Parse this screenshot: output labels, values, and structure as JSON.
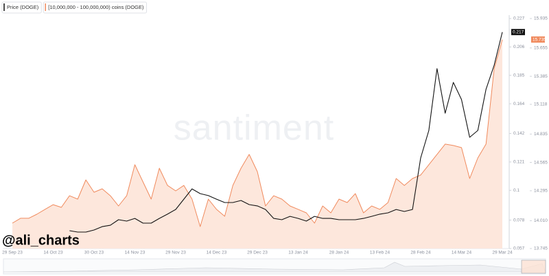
{
  "chart_data": {
    "type": "line",
    "watermark": "santiment",
    "annotation": "@ali_charts",
    "categories": [
      "29 Sep 23",
      null,
      null,
      null,
      null,
      "14 Oct 23",
      null,
      null,
      null,
      null,
      "30 Oct 23",
      null,
      null,
      null,
      null,
      "14 Nov 23",
      null,
      null,
      null,
      null,
      "29 Nov 23",
      null,
      null,
      null,
      null,
      "14 Dec 23",
      null,
      null,
      null,
      null,
      "29 Dec 23",
      null,
      null,
      null,
      null,
      "13 Jan 24",
      null,
      null,
      null,
      null,
      "28 Jan 24",
      null,
      null,
      null,
      null,
      "13 Feb 24",
      null,
      null,
      null,
      null,
      "28 Feb 24",
      null,
      null,
      null,
      null,
      "14 Mar 24",
      null,
      null,
      null,
      null,
      "29 Mar 24"
    ],
    "series": [
      {
        "name": "Price (DOGE)",
        "color": "#111111",
        "axis": "y",
        "values": [
          null,
          null,
          null,
          null,
          null,
          null,
          null,
          0.0702,
          0.0692,
          0.0692,
          0.0707,
          0.0732,
          0.0742,
          0.0783,
          0.0773,
          0.0793,
          0.0758,
          0.0758,
          0.0793,
          0.0824,
          0.0859,
          0.0935,
          0.1011,
          0.0976,
          0.0961,
          0.0935,
          0.091,
          0.091,
          0.0925,
          0.0895,
          0.0885,
          0.0859,
          0.0793,
          0.0783,
          0.0808,
          0.0793,
          0.0773,
          0.0808,
          0.0793,
          0.0793,
          0.0783,
          0.0783,
          0.0783,
          0.0793,
          0.0808,
          0.0824,
          0.0834,
          0.0859,
          0.0844,
          0.0859,
          0.124,
          0.1443,
          0.19,
          0.157,
          0.1798,
          0.1671,
          0.1392,
          0.1443,
          0.1747,
          0.1925,
          0.217
        ],
        "value_labels": [
          null,
          null,
          null,
          null,
          null,
          null,
          null,
          null,
          null,
          null,
          null,
          null,
          null,
          null,
          null,
          null,
          null,
          null,
          null,
          null,
          null,
          null,
          null,
          null,
          null,
          null,
          null,
          null,
          null,
          null,
          null,
          null,
          null,
          null,
          null,
          null,
          null,
          null,
          null,
          null,
          null,
          null,
          null,
          null,
          null,
          null,
          null,
          null,
          null,
          null,
          null,
          null,
          null,
          null,
          null,
          null,
          null,
          null,
          null,
          null,
          "0.217"
        ]
      },
      {
        "name": "[10,000,000 - 100,000,000) coins (DOGE)",
        "color": "#f08a5d",
        "axis": "y2",
        "values": [
          13.987,
          14.033,
          14.033,
          14.072,
          14.118,
          14.163,
          14.137,
          14.248,
          14.216,
          14.399,
          14.281,
          14.314,
          14.248,
          14.15,
          14.248,
          14.543,
          14.379,
          14.216,
          14.51,
          14.346,
          14.294,
          14.346,
          14.216,
          13.954,
          14.216,
          14.118,
          14.052,
          14.346,
          14.51,
          14.641,
          14.477,
          14.15,
          14.248,
          14.216,
          14.15,
          14.118,
          14.085,
          13.987,
          14.15,
          14.085,
          14.216,
          14.183,
          14.268,
          14.085,
          14.15,
          14.118,
          14.183,
          14.412,
          14.346,
          14.412,
          14.445,
          14.543,
          14.641,
          14.739,
          14.726,
          14.706,
          14.412,
          14.608,
          14.739,
          15.458,
          15.735
        ],
        "value_labels": [
          null,
          null,
          null,
          null,
          null,
          null,
          null,
          null,
          null,
          null,
          null,
          null,
          null,
          null,
          null,
          null,
          null,
          null,
          null,
          null,
          null,
          null,
          null,
          null,
          null,
          null,
          null,
          null,
          null,
          null,
          null,
          null,
          null,
          null,
          null,
          null,
          null,
          null,
          null,
          null,
          null,
          null,
          null,
          null,
          null,
          null,
          null,
          null,
          null,
          null,
          null,
          null,
          null,
          null,
          null,
          null,
          null,
          null,
          null,
          null,
          "15.735"
        ]
      }
    ],
    "ylim": [
      0.057,
      0.227
    ],
    "yticks": [
      0.227,
      0.206,
      0.185,
      0.164,
      0.142,
      0.121,
      {
        "value": 0.1,
        "label": "0.1"
      },
      0.078,
      0.057
    ],
    "y2lim": [
      13.745,
      15.935
    ],
    "y2ticks": [
      15.935,
      15.655,
      15.385,
      15.118,
      14.835,
      14.565,
      14.295,
      {
        "value": 14.01,
        "label": "14.010"
      },
      13.745
    ],
    "area_fill": "#fde7dc",
    "legend": "top-left"
  }
}
